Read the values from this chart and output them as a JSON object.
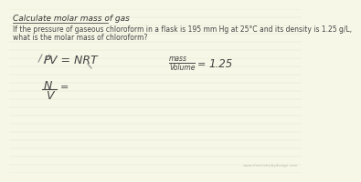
{
  "bg_color": "#f7f7e8",
  "title": "Calculate molar mass of gas",
  "problem_line1": "If the pressure of gaseous chloroform in a flask is 195 mm Hg at 25°C and its density is 1.25 g/L,",
  "problem_line2": "what is the molar mass of chloroform?",
  "watermark": "www.chemistrybydesign.com",
  "text_color": "#444444",
  "title_color": "#333333",
  "line_color": "#555555",
  "line_colors": "#999999"
}
